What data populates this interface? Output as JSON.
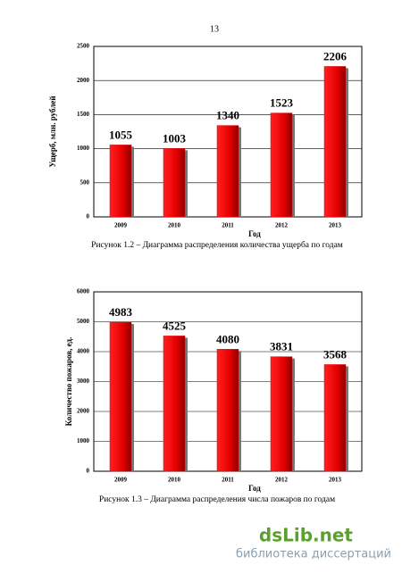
{
  "page_number": "13",
  "chart_data": [
    {
      "type": "bar",
      "y_label": "Ущерб, млн. рублей",
      "x_label": "Год",
      "caption": "Рисунок 1.2 – Диаграмма распределения количества ущерба по годам",
      "categories": [
        "2009",
        "2010",
        "2011",
        "2012",
        "2013"
      ],
      "values": [
        1055,
        1003,
        1340,
        1523,
        2206
      ],
      "color": "#e60000",
      "ylim": [
        0,
        2500
      ],
      "yticks": [
        0,
        500,
        1000,
        1500,
        2000,
        2500
      ]
    },
    {
      "type": "bar",
      "y_label": "Количество пожаров, ед.",
      "x_label": "Год",
      "caption": "Рисунок 1.3 – Диаграмма распределения числа пожаров по годам",
      "categories": [
        "2009",
        "2010",
        "2011",
        "2012",
        "2013"
      ],
      "values": [
        4983,
        4525,
        4080,
        3831,
        3568
      ],
      "color": "#e60000",
      "ylim": [
        0,
        6000
      ],
      "yticks": [
        0,
        1000,
        2000,
        3000,
        4000,
        5000,
        6000
      ]
    }
  ],
  "watermark": {
    "site": "dsLib.net",
    "subtitle": "библиотека диссертаций"
  }
}
